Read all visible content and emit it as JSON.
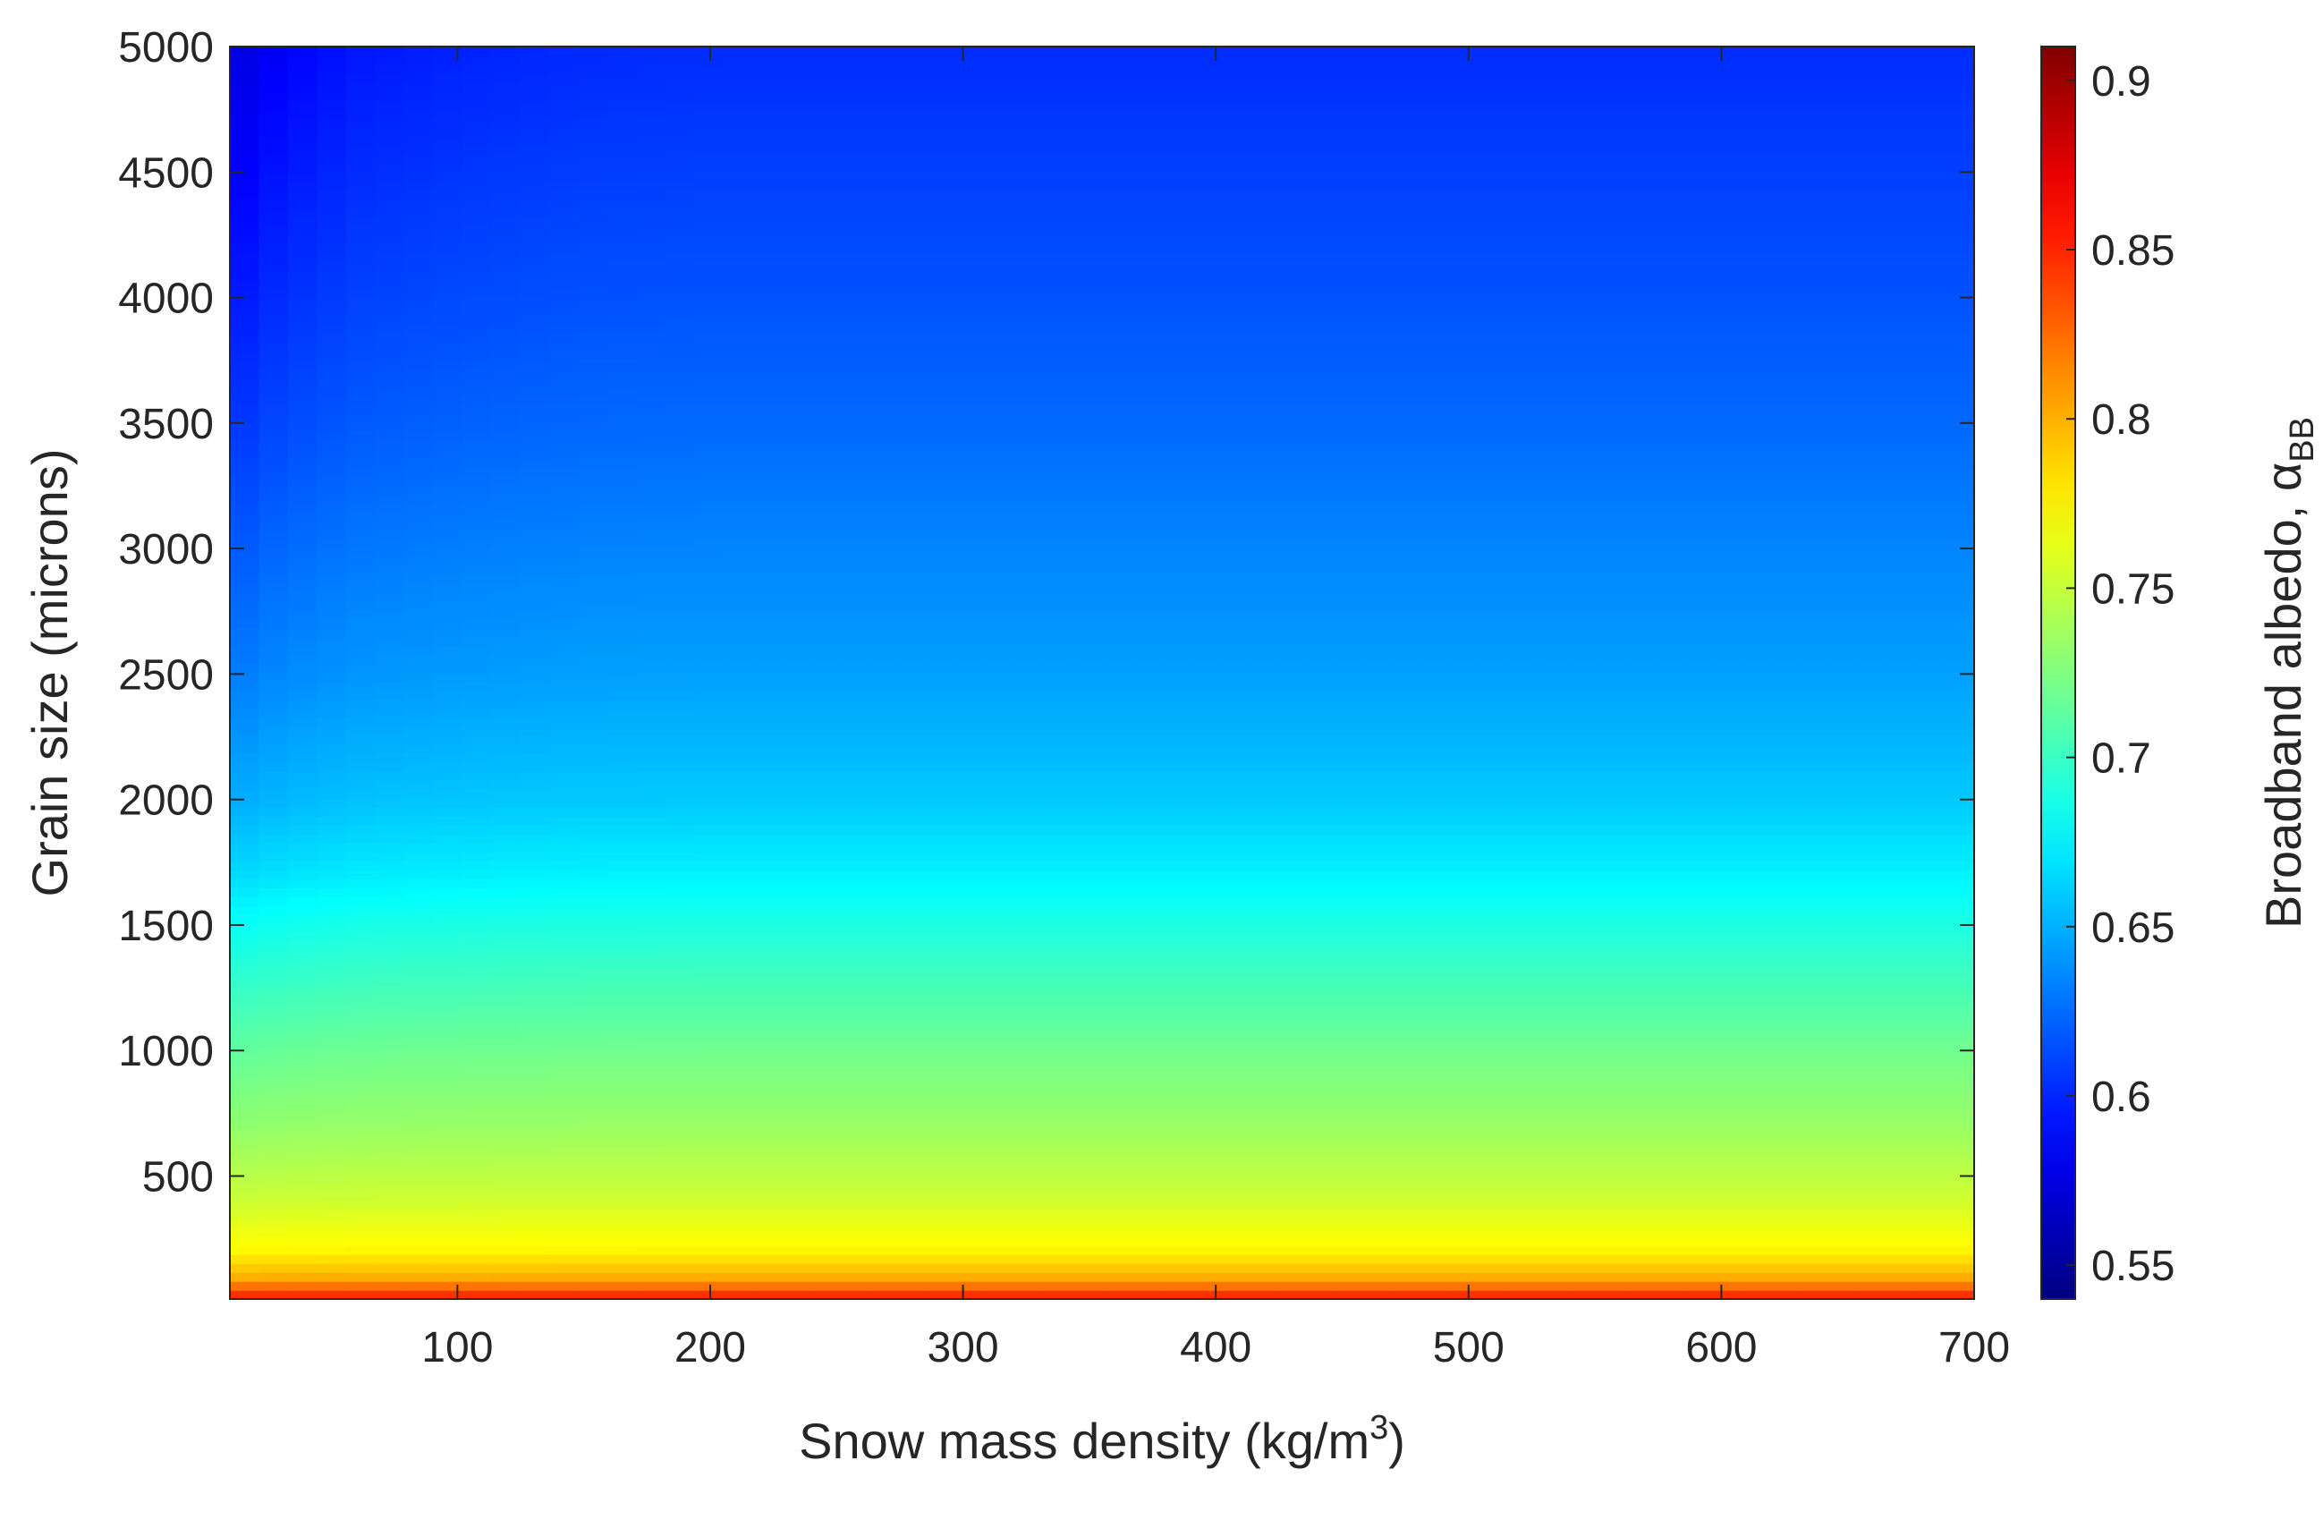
{
  "chart_data": {
    "type": "heatmap",
    "title": "",
    "xlabel": "Snow mass density (kg/m",
    "xlabel_sup": "3",
    "xlabel_end": ")",
    "ylabel": "Grain size (microns)",
    "colorbar_label": "Broadband albedo, α",
    "colorbar_label_sub": "BB",
    "xlim": [
      10,
      700
    ],
    "ylim": [
      10,
      5000
    ],
    "clim": [
      0.54,
      0.91
    ],
    "colormap": "jet",
    "grid": false,
    "x_ticks": [
      100,
      200,
      300,
      400,
      500,
      600,
      700
    ],
    "x_tick_labels": [
      "100",
      "200",
      "300",
      "400",
      "500",
      "600",
      "700"
    ],
    "y_ticks": [
      500,
      1000,
      1500,
      2000,
      2500,
      3000,
      3500,
      4000,
      4500,
      5000
    ],
    "y_tick_labels": [
      "500",
      "1000",
      "1500",
      "2000",
      "2500",
      "3000",
      "3500",
      "4000",
      "4500",
      "5000"
    ],
    "colorbar_ticks": [
      0.55,
      0.6,
      0.65,
      0.7,
      0.75,
      0.8,
      0.85,
      0.9
    ],
    "colorbar_tick_labels": [
      "0.55",
      "0.6",
      "0.65",
      "0.7",
      "0.75",
      "0.8",
      "0.85",
      "0.9"
    ],
    "grain_size_profile": {
      "grain_size": [
        10,
        50,
        100,
        200,
        300,
        400,
        500,
        700,
        1000,
        1500,
        1700,
        2000,
        2500,
        3000,
        3500,
        4000,
        4500,
        5000
      ],
      "albedo_at_high_density": [
        0.86,
        0.83,
        0.8,
        0.775,
        0.765,
        0.755,
        0.748,
        0.735,
        0.72,
        0.69,
        0.675,
        0.66,
        0.645,
        0.635,
        0.625,
        0.617,
        0.61,
        0.603
      ]
    },
    "low_density_effect": {
      "note_density": [
        10,
        30,
        60,
        100,
        150,
        200
      ],
      "albedo_reduction_at_5000_microns": [
        0.03,
        0.018,
        0.009,
        0.005,
        0.002,
        0.001
      ]
    }
  }
}
